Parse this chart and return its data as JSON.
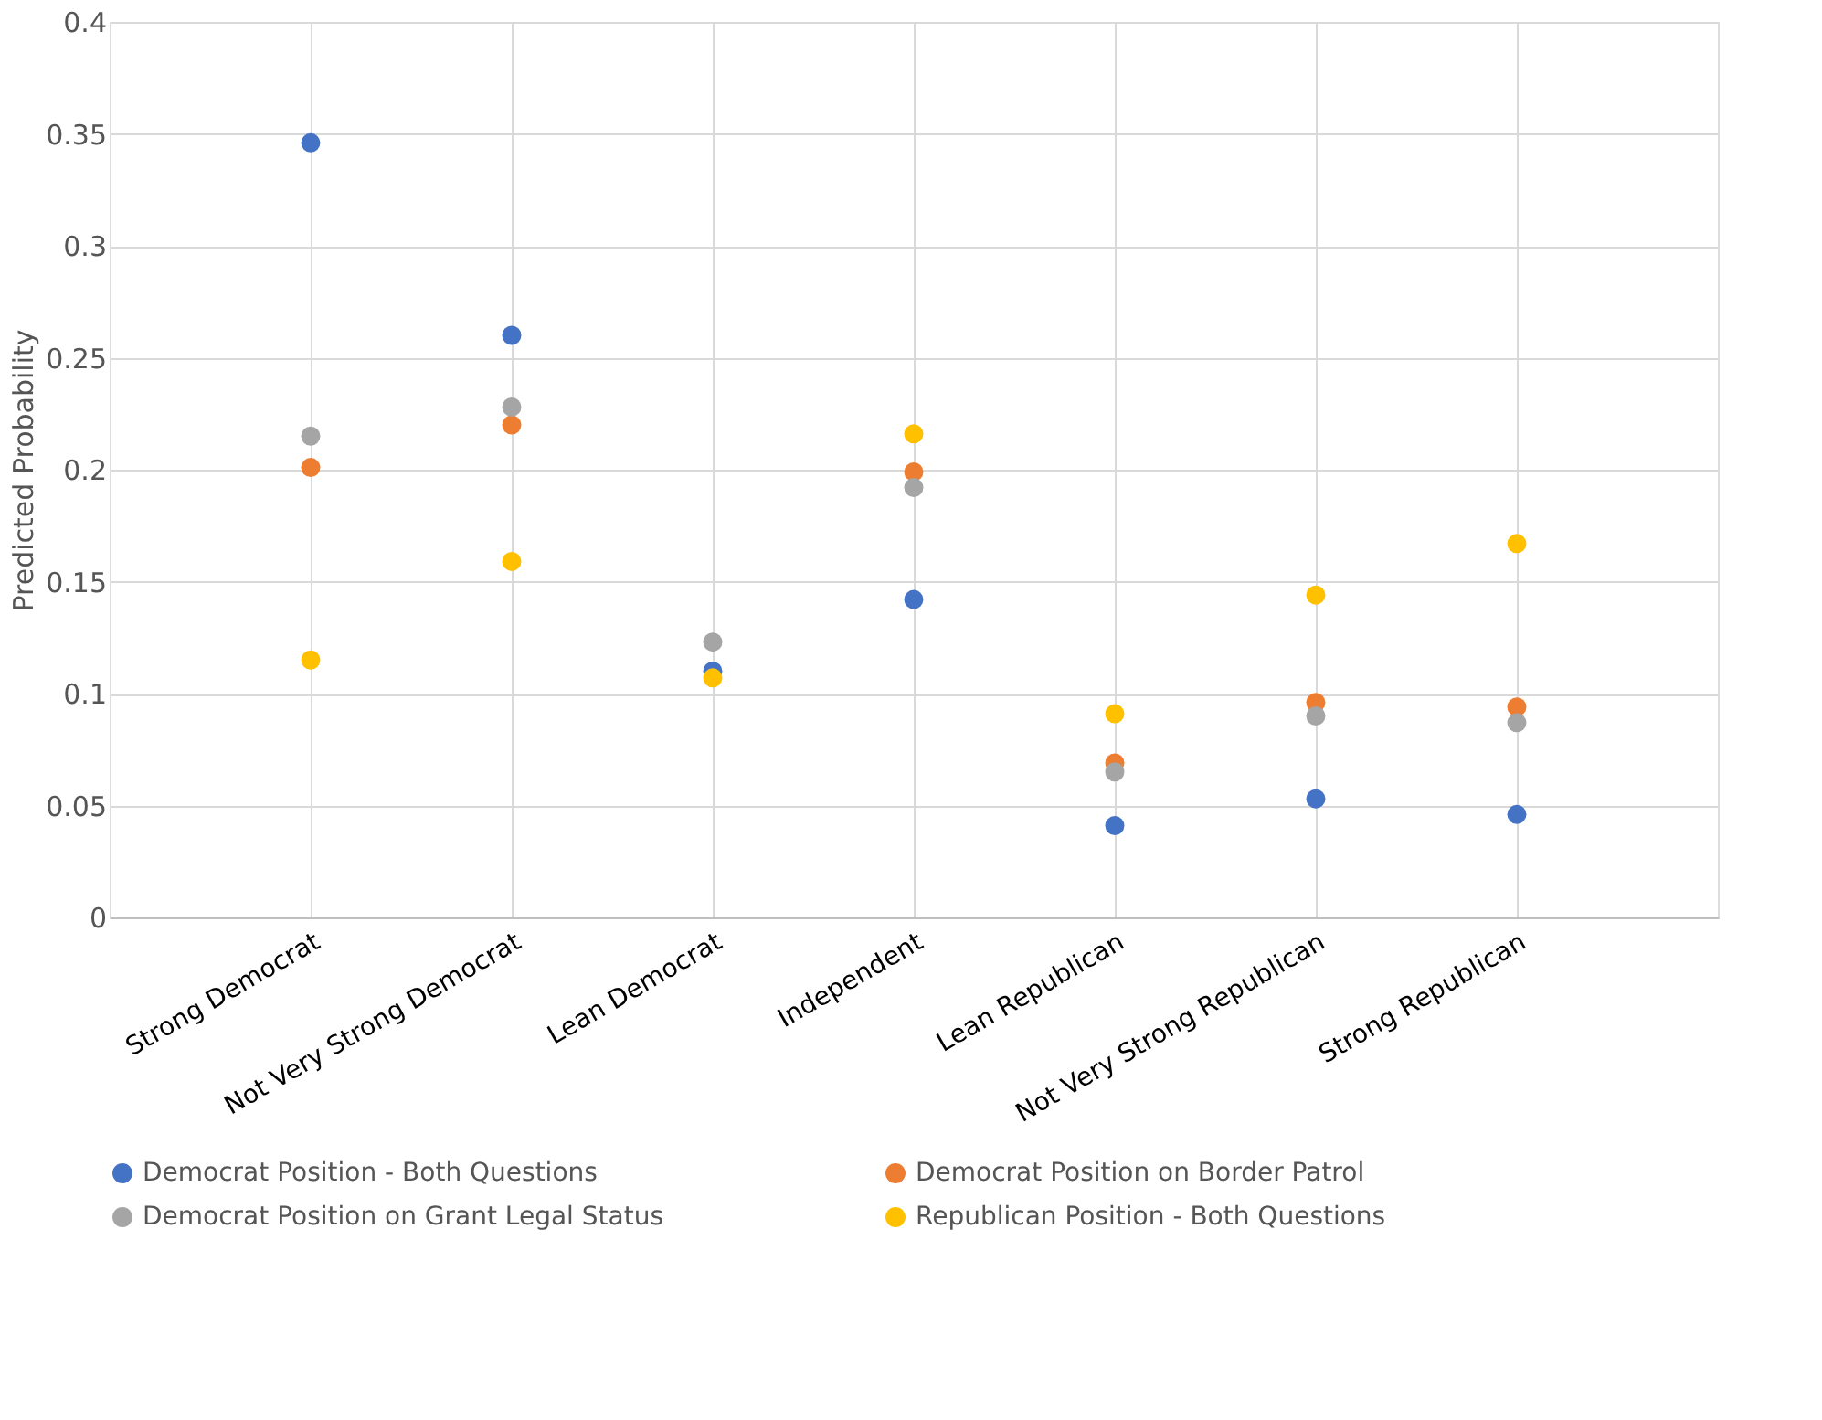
{
  "chart_data": {
    "type": "scatter",
    "ylabel": "Predicted Probability",
    "categories": [
      "Strong Democrat",
      "Not Very Strong Democrat",
      "Lean Democrat",
      "Independent",
      "Lean Republican",
      "Not Very Strong Republican",
      "Strong Republican"
    ],
    "series": [
      {
        "name": "Democrat Position - Both Questions",
        "color": "#4472c4",
        "values": [
          0.346,
          0.26,
          0.11,
          0.142,
          0.041,
          0.053,
          0.046
        ]
      },
      {
        "name": "Democrat Position on Border Patrol",
        "color": "#ed7d31",
        "values": [
          0.201,
          0.22,
          null,
          0.199,
          0.069,
          0.096,
          0.094
        ]
      },
      {
        "name": "Democrat Position on Grant Legal Status",
        "color": "#a5a5a5",
        "values": [
          0.215,
          0.228,
          0.123,
          0.192,
          0.065,
          0.09,
          0.087
        ]
      },
      {
        "name": "Republican Position - Both Questions",
        "color": "#ffc000",
        "values": [
          0.115,
          0.159,
          0.107,
          0.216,
          0.091,
          0.144,
          0.167
        ]
      }
    ],
    "ylim": [
      0,
      0.4
    ],
    "yticks": [
      0,
      0.05,
      0.1,
      0.15,
      0.2,
      0.25,
      0.3,
      0.35,
      0.4
    ],
    "grid": true,
    "legend": "bottom",
    "marker": "circle"
  }
}
